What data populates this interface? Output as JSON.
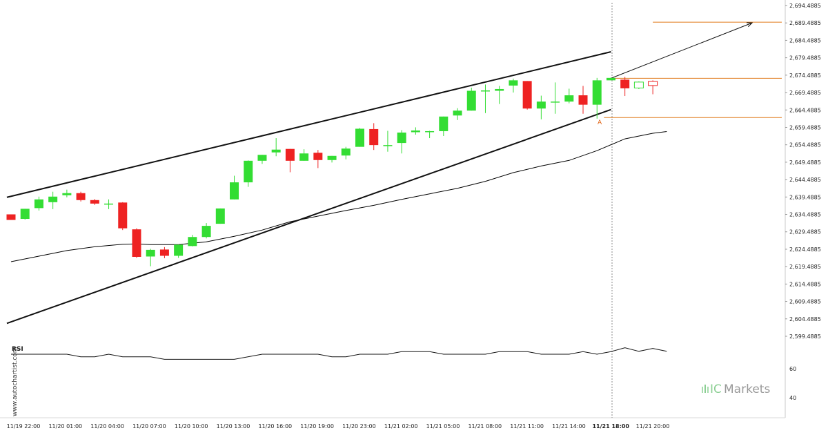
{
  "watermark": "www.autochartist.com",
  "brand": {
    "prefix": "IC",
    "suffix": "Markets"
  },
  "rsi_label": "RSI",
  "annotation": "A",
  "colors": {
    "up": "#33dd33",
    "down": "#ee2222",
    "trend": "#111111",
    "level": "#e07a1a",
    "ma": "#000000"
  },
  "chart_data": {
    "type": "candlestick",
    "instrument": "",
    "price_ticks": [
      "2,694.4885",
      "2,689.4885",
      "2,684.4885",
      "2,679.4885",
      "2,674.4885",
      "2,669.4885",
      "2,664.4885",
      "2,659.4885",
      "2,654.4885",
      "2,649.4885",
      "2,644.4885",
      "2,639.4885",
      "2,634.4885",
      "2,629.4885",
      "2,624.4885",
      "2,619.4885",
      "2,614.4885",
      "2,609.4885",
      "2,604.4885",
      "2,599.4885"
    ],
    "rsi_ticks": [
      "60",
      "40"
    ],
    "time_ticks": [
      "11/19 22:00",
      "11/20 01:00",
      "11/20 04:00",
      "11/20 07:00",
      "11/20 10:00",
      "11/20 13:00",
      "11/20 16:00",
      "11/20 19:00",
      "11/20 23:00",
      "11/21 02:00",
      "11/21 05:00",
      "11/21 08:00",
      "11/21 11:00",
      "11/21 14:00",
      "11/21 18:00",
      "11/21 20:00"
    ],
    "highlight_time": "11/21 18:00",
    "ylim": [
      2598.5,
      2694.5
    ],
    "candles": [
      {
        "o": 2634.5,
        "h": 2634.5,
        "l": 2632.9,
        "c": 2632.9
      },
      {
        "o": 2633.2,
        "h": 2636.1,
        "l": 2633.0,
        "c": 2636.1
      },
      {
        "o": 2636.3,
        "h": 2639.6,
        "l": 2635.6,
        "c": 2638.8
      },
      {
        "o": 2638.0,
        "h": 2641.0,
        "l": 2636.0,
        "c": 2639.6
      },
      {
        "o": 2640.0,
        "h": 2641.6,
        "l": 2639.4,
        "c": 2640.6
      },
      {
        "o": 2640.6,
        "h": 2641.0,
        "l": 2638.2,
        "c": 2638.6
      },
      {
        "o": 2638.6,
        "h": 2638.9,
        "l": 2637.2,
        "c": 2637.6
      },
      {
        "o": 2637.6,
        "h": 2638.8,
        "l": 2636.0,
        "c": 2637.6
      },
      {
        "o": 2637.9,
        "h": 2638.0,
        "l": 2630.0,
        "c": 2630.5
      },
      {
        "o": 2630.2,
        "h": 2630.5,
        "l": 2622.0,
        "c": 2622.3
      },
      {
        "o": 2622.4,
        "h": 2624.6,
        "l": 2619.6,
        "c": 2624.3
      },
      {
        "o": 2624.4,
        "h": 2625.1,
        "l": 2621.9,
        "c": 2622.6
      },
      {
        "o": 2622.6,
        "h": 2625.8,
        "l": 2622.0,
        "c": 2625.8
      },
      {
        "o": 2625.4,
        "h": 2628.6,
        "l": 2625.3,
        "c": 2628.0
      },
      {
        "o": 2628.0,
        "h": 2632.0,
        "l": 2627.6,
        "c": 2631.2
      },
      {
        "o": 2631.8,
        "h": 2636.2,
        "l": 2631.8,
        "c": 2636.2
      },
      {
        "o": 2638.8,
        "h": 2645.6,
        "l": 2638.8,
        "c": 2643.7
      },
      {
        "o": 2643.7,
        "h": 2650.0,
        "l": 2642.4,
        "c": 2649.9
      },
      {
        "o": 2649.9,
        "h": 2651.6,
        "l": 2649.0,
        "c": 2651.6
      },
      {
        "o": 2652.3,
        "h": 2656.4,
        "l": 2651.2,
        "c": 2653.1
      },
      {
        "o": 2653.3,
        "h": 2653.3,
        "l": 2646.6,
        "c": 2649.9
      },
      {
        "o": 2649.9,
        "h": 2653.2,
        "l": 2649.9,
        "c": 2652.0
      },
      {
        "o": 2652.2,
        "h": 2653.0,
        "l": 2647.8,
        "c": 2650.1
      },
      {
        "o": 2650.1,
        "h": 2651.3,
        "l": 2649.4,
        "c": 2651.3
      },
      {
        "o": 2651.4,
        "h": 2653.9,
        "l": 2650.3,
        "c": 2653.4
      },
      {
        "o": 2653.9,
        "h": 2659.3,
        "l": 2653.9,
        "c": 2659.1
      },
      {
        "o": 2659.0,
        "h": 2660.7,
        "l": 2653.0,
        "c": 2654.4
      },
      {
        "o": 2654.3,
        "h": 2658.5,
        "l": 2652.5,
        "c": 2654.4
      },
      {
        "o": 2655.0,
        "h": 2658.7,
        "l": 2652.0,
        "c": 2658.0
      },
      {
        "o": 2658.1,
        "h": 2659.5,
        "l": 2657.4,
        "c": 2658.6
      },
      {
        "o": 2658.4,
        "h": 2658.5,
        "l": 2656.4,
        "c": 2658.4
      },
      {
        "o": 2658.4,
        "h": 2662.6,
        "l": 2657.0,
        "c": 2662.6
      },
      {
        "o": 2662.9,
        "h": 2665.0,
        "l": 2661.6,
        "c": 2664.3
      },
      {
        "o": 2664.3,
        "h": 2670.9,
        "l": 2664.3,
        "c": 2670.0
      },
      {
        "o": 2669.8,
        "h": 2671.8,
        "l": 2663.6,
        "c": 2670.1
      },
      {
        "o": 2670.0,
        "h": 2671.4,
        "l": 2666.2,
        "c": 2670.5
      },
      {
        "o": 2671.5,
        "h": 2673.5,
        "l": 2669.5,
        "c": 2673.0
      },
      {
        "o": 2672.8,
        "h": 2672.8,
        "l": 2664.6,
        "c": 2664.9
      },
      {
        "o": 2664.9,
        "h": 2668.6,
        "l": 2661.8,
        "c": 2666.9
      },
      {
        "o": 2666.8,
        "h": 2672.4,
        "l": 2663.4,
        "c": 2666.9
      },
      {
        "o": 2666.9,
        "h": 2670.6,
        "l": 2666.4,
        "c": 2668.7
      },
      {
        "o": 2668.7,
        "h": 2671.4,
        "l": 2663.4,
        "c": 2666.0
      },
      {
        "o": 2666.0,
        "h": 2673.7,
        "l": 2662.0,
        "c": 2673.0
      },
      {
        "o": 2673.0,
        "h": 2673.8,
        "l": 2673.0,
        "c": 2673.7
      },
      {
        "o": 2673.2,
        "h": 2674.0,
        "l": 2668.5,
        "c": 2670.7
      },
      {
        "o": 2670.8,
        "h": 2672.7,
        "l": 2670.5,
        "c": 2672.5
      },
      {
        "o": 2672.7,
        "h": 2673.0,
        "l": 2669.0,
        "c": 2671.5
      }
    ],
    "projected_from_index": 44,
    "moving_average": [
      [
        0,
        2620.9
      ],
      [
        2,
        2622.5
      ],
      [
        4,
        2624.1
      ],
      [
        6,
        2625.2
      ],
      [
        8,
        2625.9
      ],
      [
        9,
        2626.0
      ],
      [
        10,
        2625.8
      ],
      [
        12,
        2625.8
      ],
      [
        14,
        2626.6
      ],
      [
        16,
        2628.2
      ],
      [
        18,
        2630.0
      ],
      [
        20,
        2632.4
      ],
      [
        22,
        2634.0
      ],
      [
        24,
        2635.6
      ],
      [
        26,
        2637.1
      ],
      [
        28,
        2638.8
      ],
      [
        30,
        2640.4
      ],
      [
        32,
        2642.0
      ],
      [
        34,
        2644.0
      ],
      [
        36,
        2646.5
      ],
      [
        38,
        2648.4
      ],
      [
        40,
        2650.0
      ],
      [
        42,
        2652.8
      ],
      [
        44,
        2656.2
      ],
      [
        46,
        2657.8
      ],
      [
        47,
        2658.3
      ]
    ],
    "rsi_ticks_values": [
      60,
      40
    ],
    "rsi_ylim": [
      32,
      78
    ],
    "rsi": [
      [
        0,
        70.0
      ],
      [
        4,
        70.0
      ],
      [
        5,
        68.2
      ],
      [
        6,
        68.2
      ],
      [
        7,
        70.0
      ],
      [
        8,
        68.2
      ],
      [
        10,
        68.2
      ],
      [
        11,
        66.5
      ],
      [
        16,
        66.5
      ],
      [
        18,
        70.0
      ],
      [
        22,
        70.0
      ],
      [
        23,
        68.2
      ],
      [
        24,
        68.2
      ],
      [
        25,
        70.0
      ],
      [
        27,
        70.0
      ],
      [
        28,
        71.8
      ],
      [
        30,
        71.8
      ],
      [
        31,
        70.0
      ],
      [
        34,
        70.0
      ],
      [
        35,
        71.8
      ],
      [
        37,
        71.8
      ],
      [
        38,
        70.0
      ],
      [
        40,
        70.0
      ],
      [
        41,
        71.8
      ],
      [
        42,
        70.0
      ],
      [
        43,
        71.8
      ],
      [
        44,
        74.5
      ],
      [
        45,
        72.0
      ],
      [
        46,
        74.0
      ],
      [
        47,
        72.0
      ]
    ],
    "trend_lines": [
      {
        "x0": -0.3,
        "y0": 2639.4,
        "x1": 43.0,
        "y1": 2681.2
      },
      {
        "x0": -0.3,
        "y0": 2603.2,
        "x1": 43.0,
        "y1": 2664.6
      }
    ],
    "levels": [
      {
        "value": 2689.7,
        "from": 46.0,
        "to": 55.0
      },
      {
        "value": 2673.6,
        "from": 43.0,
        "to": 55.0
      },
      {
        "value": 2662.3,
        "from": 42.5,
        "to": 55.0
      }
    ],
    "projection_arrow": {
      "x0": 43.0,
      "y0": 2673.6,
      "x1": 53.0,
      "y1": 2689.7
    }
  }
}
